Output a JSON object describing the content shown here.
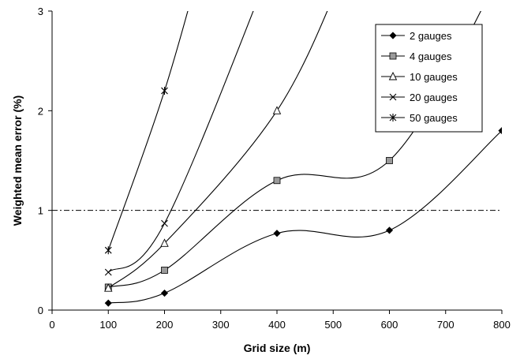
{
  "chart_data": {
    "type": "line",
    "xlabel": "Grid size (m)",
    "ylabel": "Weighted mean error (%)",
    "xlim": [
      0,
      800
    ],
    "ylim": [
      0,
      3
    ],
    "x_ticks": [
      "0",
      "100",
      "200",
      "300",
      "400",
      "500",
      "600",
      "700",
      "800"
    ],
    "y_ticks": [
      "0",
      "1",
      "2",
      "3"
    ],
    "reference_line": {
      "y": 1,
      "style": "dash-dot"
    },
    "grid": false,
    "legend_position": "top-right",
    "series": [
      {
        "name": "2 gauges",
        "marker": "diamond",
        "marker_color": "#000000",
        "x": [
          100,
          200,
          400,
          600,
          800
        ],
        "values": [
          0.07,
          0.17,
          0.77,
          0.8,
          1.8
        ]
      },
      {
        "name": "4 gauges",
        "marker": "square",
        "marker_color": "#9a9a9a",
        "x": [
          100,
          200,
          400,
          600
        ],
        "values": [
          0.23,
          0.4,
          1.3,
          1.5
        ]
      },
      {
        "name": "10 gauges",
        "marker": "triangle",
        "marker_color": "#ffffff",
        "x": [
          100,
          200,
          400
        ],
        "values": [
          0.22,
          0.67,
          2.0
        ]
      },
      {
        "name": "20 gauges",
        "marker": "x",
        "marker_color": "#000000",
        "x": [
          100,
          200
        ],
        "values": [
          0.38,
          0.87
        ]
      },
      {
        "name": "50 gauges",
        "marker": "star",
        "marker_color": "#000000",
        "x": [
          100,
          200
        ],
        "values": [
          0.6,
          2.2
        ]
      }
    ]
  }
}
